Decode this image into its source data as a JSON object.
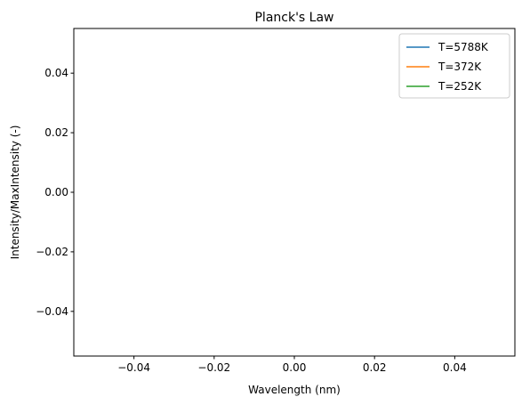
{
  "chart_data": {
    "type": "line",
    "title": "Planck's Law",
    "xlabel": "Wavelength (nm)",
    "ylabel": "Intensity/MaxIntensity (-)",
    "xlim": [
      -0.055,
      0.055
    ],
    "ylim": [
      -0.055,
      0.055
    ],
    "x_ticks": [
      -0.04,
      -0.02,
      0.0,
      0.02,
      0.04
    ],
    "x_tick_labels": [
      "−0.04",
      "−0.02",
      "0.00",
      "0.02",
      "0.04"
    ],
    "y_ticks": [
      -0.04,
      -0.02,
      0.0,
      0.02,
      0.04
    ],
    "y_tick_labels": [
      "−0.04",
      "−0.02",
      "0.00",
      "0.02",
      "0.04"
    ],
    "grid": false,
    "legend_position": "top-right",
    "series": [
      {
        "name": "T=5788K",
        "color": "#1f77b4",
        "x": [],
        "y": []
      },
      {
        "name": "T=372K",
        "color": "#ff7f0e",
        "x": [],
        "y": []
      },
      {
        "name": "T=252K",
        "color": "#2ca02c",
        "x": [],
        "y": []
      }
    ]
  }
}
